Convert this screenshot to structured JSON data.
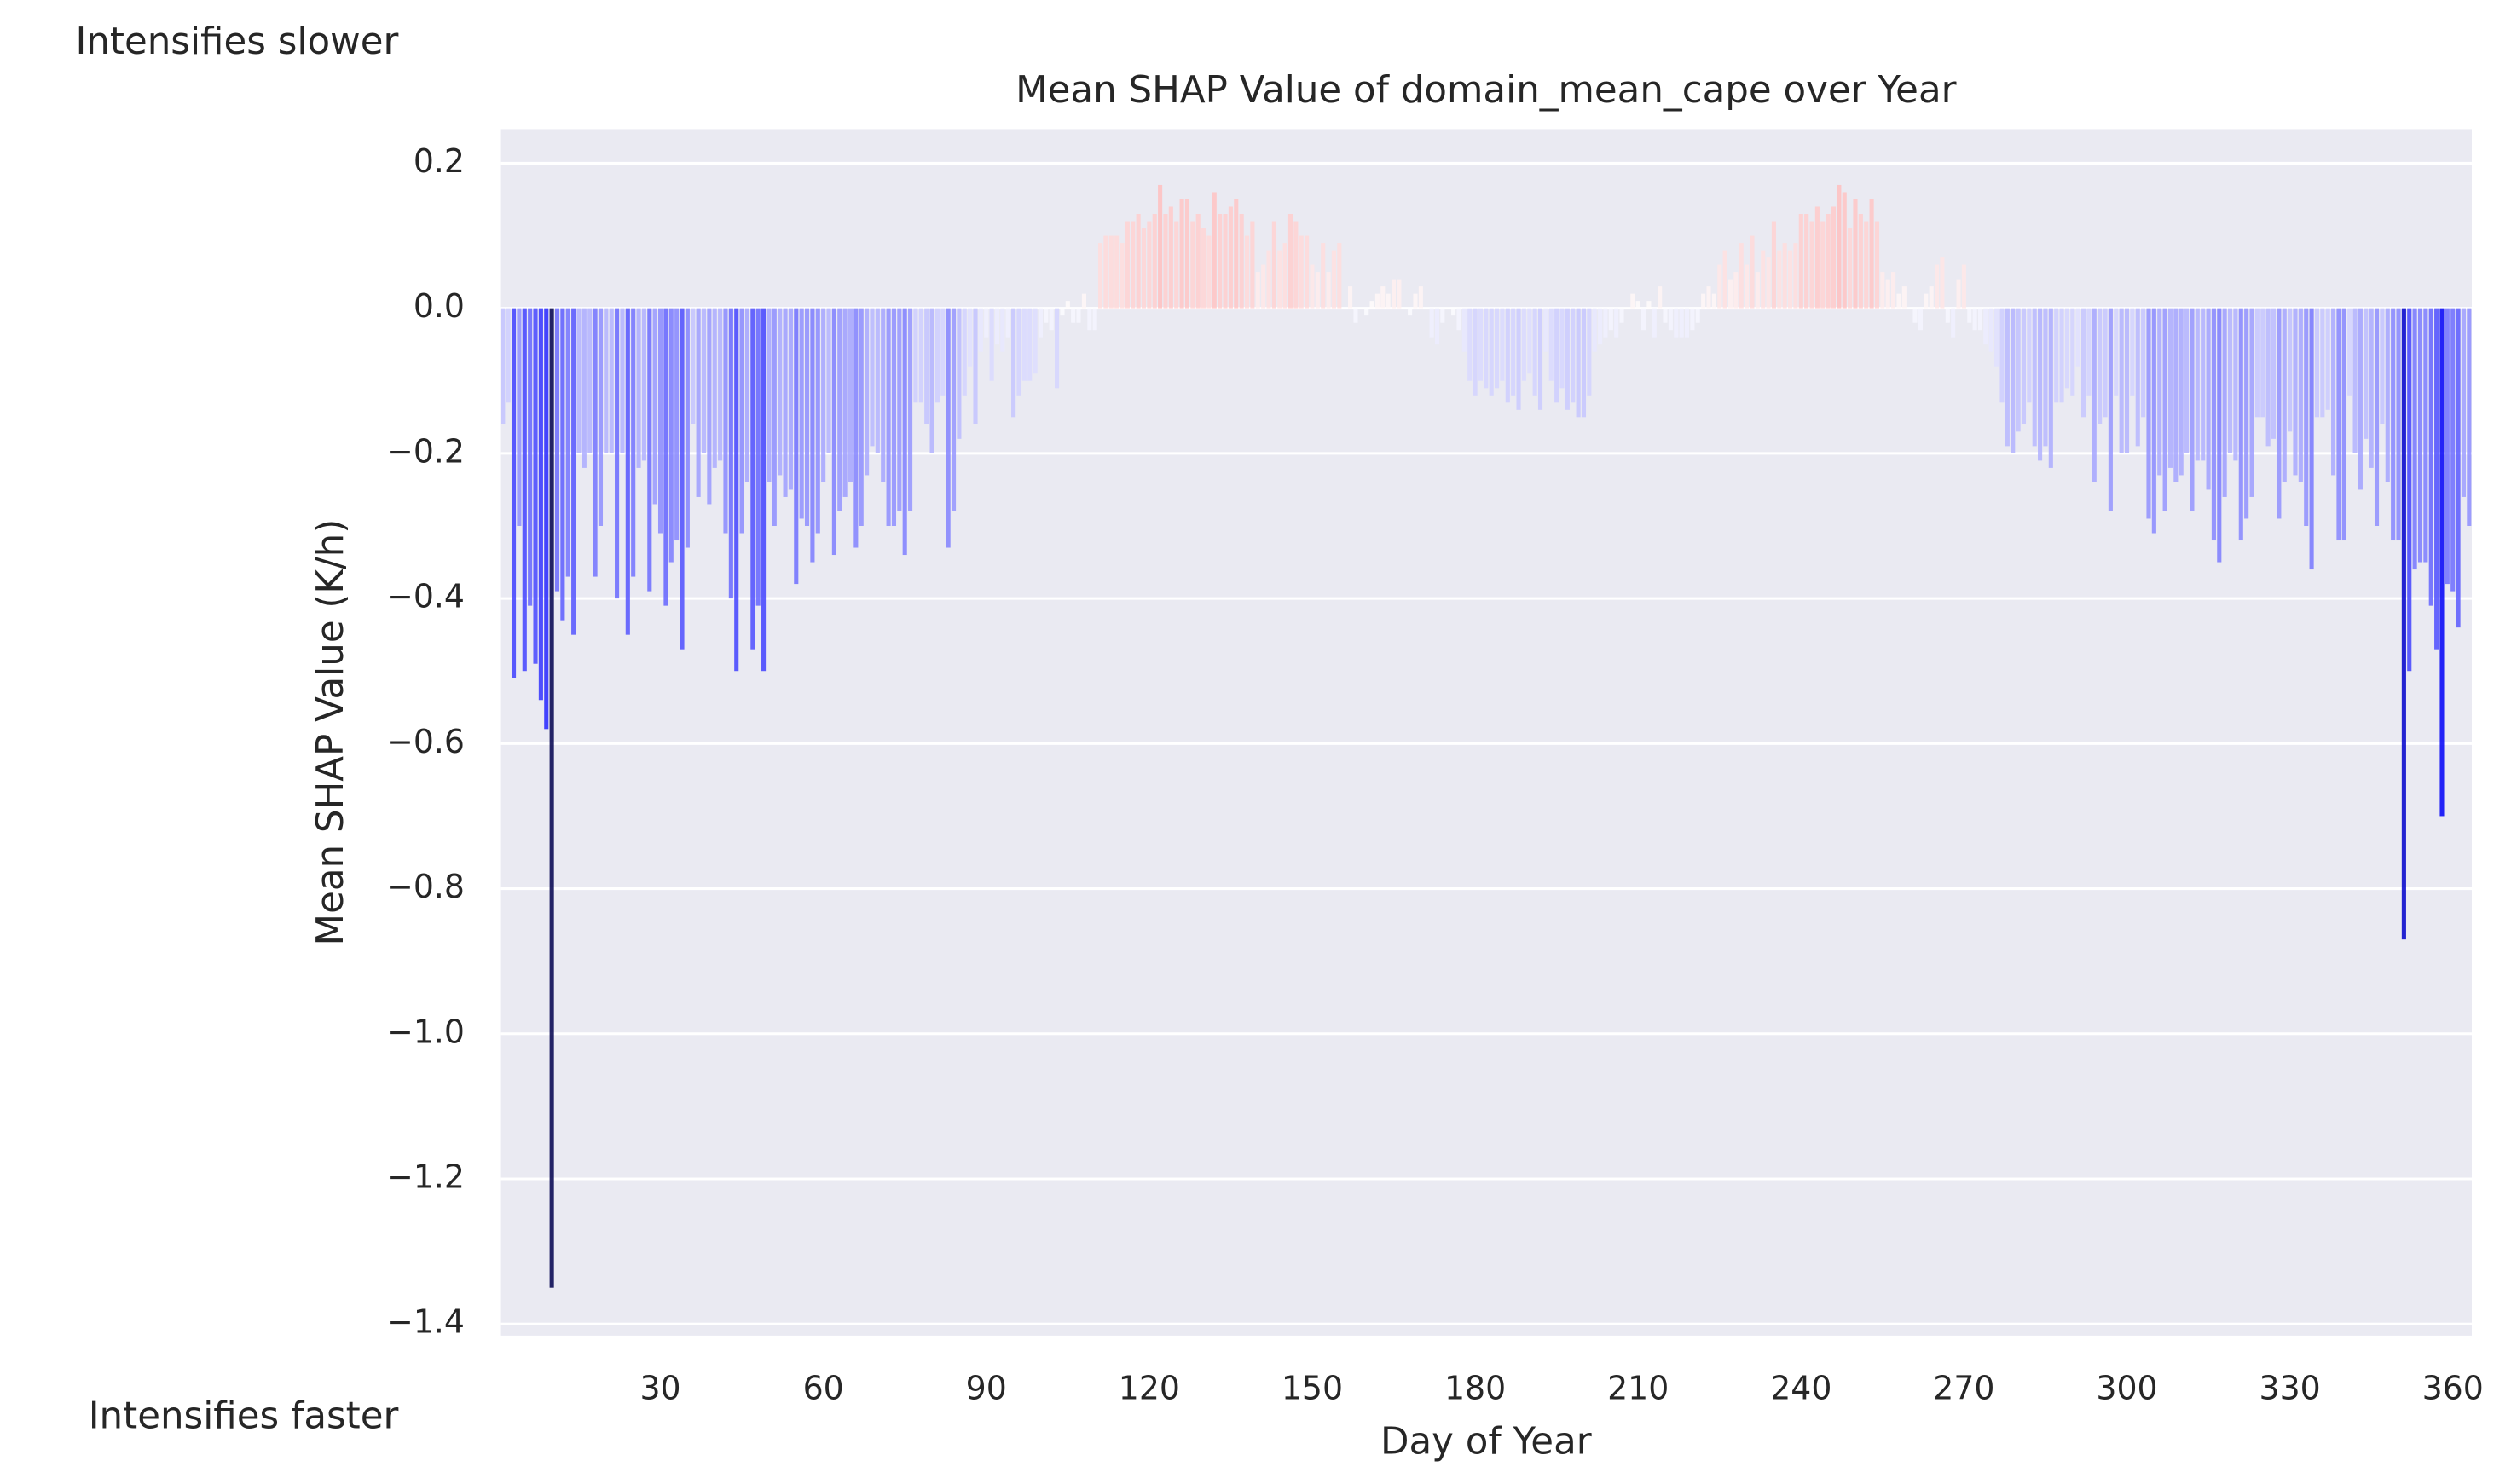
{
  "chart_data": {
    "type": "bar",
    "title": "Mean SHAP Value of domain_mean_cape over Year",
    "xlabel": "Day of Year",
    "ylabel": "Mean SHAP Value (K/h)",
    "annotations": [
      "Intensifies slower",
      "Intensifies faster"
    ],
    "colormap": "seismic",
    "grid": true,
    "background": "#eaeaf2",
    "xlim": [
      0.5,
      363.5
    ],
    "ylim": [
      -1.416,
      0.247
    ],
    "xticks": [
      30,
      60,
      90,
      120,
      150,
      180,
      210,
      240,
      270,
      300,
      330,
      360
    ],
    "yticks": [
      0.2,
      {
        "value": 0,
        "label": "0.0"
      },
      {
        "value": -0.2,
        "label": "−0.2"
      },
      {
        "value": -0.4,
        "label": "−0.4"
      },
      {
        "value": -0.6,
        "label": "−0.6"
      },
      {
        "value": -0.8,
        "label": "−0.8"
      },
      {
        "value": -1.0,
        "label": "−1.0"
      },
      {
        "value": -1.2,
        "label": "−1.2"
      },
      {
        "value": -1.4,
        "label": "−1.4"
      }
    ],
    "x": [
      1,
      2,
      3,
      4,
      5,
      6,
      7,
      8,
      9,
      10,
      11,
      12,
      13,
      14,
      15,
      16,
      17,
      18,
      19,
      20,
      21,
      22,
      23,
      24,
      25,
      26,
      27,
      28,
      29,
      30,
      31,
      32,
      33,
      34,
      35,
      36,
      37,
      38,
      39,
      40,
      41,
      42,
      43,
      44,
      45,
      46,
      47,
      48,
      49,
      50,
      51,
      52,
      53,
      54,
      55,
      56,
      57,
      58,
      59,
      60,
      61,
      62,
      63,
      64,
      65,
      66,
      67,
      68,
      69,
      70,
      71,
      72,
      73,
      74,
      75,
      76,
      77,
      78,
      79,
      80,
      81,
      82,
      83,
      84,
      85,
      86,
      87,
      88,
      89,
      90,
      91,
      92,
      93,
      94,
      95,
      96,
      97,
      98,
      99,
      100,
      101,
      102,
      103,
      104,
      105,
      106,
      107,
      108,
      109,
      110,
      111,
      112,
      113,
      114,
      115,
      116,
      117,
      118,
      119,
      120,
      121,
      122,
      123,
      124,
      125,
      126,
      127,
      128,
      129,
      130,
      131,
      132,
      133,
      134,
      135,
      136,
      137,
      138,
      139,
      140,
      141,
      142,
      143,
      144,
      145,
      146,
      147,
      148,
      149,
      150,
      151,
      152,
      153,
      154,
      155,
      156,
      157,
      158,
      159,
      160,
      161,
      162,
      163,
      164,
      165,
      166,
      167,
      168,
      169,
      170,
      171,
      172,
      173,
      174,
      175,
      176,
      177,
      178,
      179,
      180,
      181,
      182,
      183,
      184,
      185,
      186,
      187,
      188,
      189,
      190,
      191,
      192,
      193,
      194,
      195,
      196,
      197,
      198,
      199,
      200,
      201,
      202,
      203,
      204,
      205,
      206,
      207,
      208,
      209,
      210,
      211,
      212,
      213,
      214,
      215,
      216,
      217,
      218,
      219,
      220,
      221,
      222,
      223,
      224,
      225,
      226,
      227,
      228,
      229,
      230,
      231,
      232,
      233,
      234,
      235,
      236,
      237,
      238,
      239,
      240,
      241,
      242,
      243,
      244,
      245,
      246,
      247,
      248,
      249,
      250,
      251,
      252,
      253,
      254,
      255,
      256,
      257,
      258,
      259,
      260,
      261,
      262,
      263,
      264,
      265,
      266,
      267,
      268,
      269,
      270,
      271,
      272,
      273,
      274,
      275,
      276,
      277,
      278,
      279,
      280,
      281,
      282,
      283,
      284,
      285,
      286,
      287,
      288,
      289,
      290,
      291,
      292,
      293,
      294,
      295,
      296,
      297,
      298,
      299,
      300,
      301,
      302,
      303,
      304,
      305,
      306,
      307,
      308,
      309,
      310,
      311,
      312,
      313,
      314,
      315,
      316,
      317,
      318,
      319,
      320,
      321,
      322,
      323,
      324,
      325,
      326,
      327,
      328,
      329,
      330,
      331,
      332,
      333,
      334,
      335,
      336,
      337,
      338,
      339,
      340,
      341,
      342,
      343,
      344,
      345,
      346,
      347,
      348,
      349,
      350,
      351,
      352,
      353,
      354,
      355,
      356,
      357,
      358,
      359,
      360,
      361,
      362,
      363
    ],
    "values": [
      -0.16,
      -0.13,
      -0.51,
      -0.3,
      -0.5,
      -0.41,
      -0.49,
      -0.54,
      -0.58,
      -1.35,
      -0.39,
      -0.43,
      -0.37,
      -0.45,
      -0.2,
      -0.22,
      -0.2,
      -0.37,
      -0.3,
      -0.2,
      -0.2,
      -0.4,
      -0.2,
      -0.45,
      -0.37,
      -0.22,
      -0.21,
      -0.39,
      -0.27,
      -0.31,
      -0.41,
      -0.35,
      -0.32,
      -0.47,
      -0.33,
      -0.16,
      -0.26,
      -0.2,
      -0.27,
      -0.22,
      -0.21,
      -0.31,
      -0.4,
      -0.5,
      -0.31,
      -0.24,
      -0.47,
      -0.41,
      -0.5,
      -0.24,
      -0.3,
      -0.23,
      -0.26,
      -0.25,
      -0.38,
      -0.29,
      -0.3,
      -0.35,
      -0.31,
      -0.24,
      -0.2,
      -0.34,
      -0.28,
      -0.26,
      -0.24,
      -0.33,
      -0.3,
      -0.23,
      -0.19,
      -0.2,
      -0.24,
      -0.3,
      -0.3,
      -0.28,
      -0.34,
      -0.28,
      -0.13,
      -0.13,
      -0.16,
      -0.2,
      -0.13,
      -0.12,
      -0.33,
      -0.28,
      -0.18,
      -0.12,
      -0.08,
      -0.16,
      -0.06,
      -0.04,
      -0.1,
      -0.05,
      -0.06,
      -0.04,
      -0.15,
      -0.12,
      -0.1,
      -0.1,
      -0.09,
      -0.04,
      -0.02,
      -0.03,
      -0.11,
      -0.01,
      0.01,
      -0.02,
      -0.02,
      0.02,
      -0.03,
      -0.03,
      0.09,
      0.1,
      0.1,
      0.1,
      0.09,
      0.12,
      0.12,
      0.13,
      0.11,
      0.12,
      0.13,
      0.17,
      0.13,
      0.14,
      0.12,
      0.15,
      0.15,
      0.12,
      0.13,
      0.11,
      0.1,
      0.16,
      0.13,
      0.13,
      0.14,
      0.15,
      0.13,
      0.1,
      0.12,
      0.05,
      0.06,
      0.08,
      0.12,
      0.08,
      0.09,
      0.13,
      0.12,
      0.1,
      0.1,
      0.06,
      0.05,
      0.09,
      0.05,
      0.08,
      0.09,
      0,
      0.03,
      -0.02,
      0,
      -0.01,
      0.01,
      0.02,
      0.03,
      0.02,
      0.04,
      0.04,
      0,
      -0.01,
      0.02,
      0.03,
      0,
      -0.04,
      -0.05,
      -0.02,
      0,
      -0.01,
      -0.03,
      -0.06,
      -0.1,
      -0.12,
      -0.1,
      -0.11,
      -0.12,
      -0.11,
      -0.1,
      -0.13,
      -0.12,
      -0.14,
      -0.1,
      -0.09,
      -0.12,
      -0.14,
      -0.06,
      -0.1,
      -0.13,
      -0.11,
      -0.14,
      -0.13,
      -0.15,
      -0.15,
      -0.12,
      -0.06,
      -0.05,
      -0.04,
      -0.03,
      -0.04,
      -0.02,
      0,
      0.02,
      0.01,
      -0.03,
      0.01,
      -0.04,
      0.03,
      -0.02,
      -0.03,
      -0.04,
      -0.04,
      -0.04,
      -0.03,
      -0.02,
      0.02,
      0.03,
      0.02,
      0.06,
      0.08,
      0.04,
      0.05,
      0.09,
      0.06,
      0.1,
      0.05,
      0.08,
      0.07,
      0.12,
      0.08,
      0.09,
      0.08,
      0.09,
      0.13,
      0.13,
      0.12,
      0.14,
      0.12,
      0.13,
      0.14,
      0.17,
      0.16,
      0.11,
      0.15,
      0.13,
      0.12,
      0.15,
      0.12,
      0.05,
      0.04,
      0.05,
      0.02,
      0.03,
      0,
      -0.02,
      -0.03,
      0.02,
      0.03,
      0.06,
      0.07,
      -0.02,
      -0.04,
      0.04,
      0.06,
      -0.02,
      -0.03,
      -0.03,
      -0.05,
      -0.06,
      -0.08,
      -0.13,
      -0.19,
      -0.2,
      -0.17,
      -0.16,
      -0.13,
      -0.19,
      -0.21,
      -0.19,
      -0.22,
      -0.13,
      -0.13,
      -0.11,
      -0.12,
      -0.08,
      -0.15,
      -0.12,
      -0.24,
      -0.16,
      -0.15,
      -0.28,
      -0.12,
      -0.2,
      -0.2,
      -0.12,
      -0.19,
      -0.15,
      -0.29,
      -0.31,
      -0.23,
      -0.28,
      -0.22,
      -0.24,
      -0.23,
      -0.2,
      -0.28,
      -0.21,
      -0.21,
      -0.25,
      -0.32,
      -0.35,
      -0.26,
      -0.2,
      -0.21,
      -0.32,
      -0.29,
      -0.26,
      -0.15,
      -0.15,
      -0.19,
      -0.18,
      -0.29,
      -0.24,
      -0.17,
      -0.23,
      -0.24,
      -0.3,
      -0.36,
      -0.15,
      -0.15,
      -0.14,
      -0.23,
      -0.32,
      -0.32,
      -0.12,
      -0.2,
      -0.25,
      -0.18,
      -0.22,
      -0.3,
      -0.16,
      -0.24,
      -0.32,
      -0.32,
      -0.87,
      -0.5,
      -0.36,
      -0.35,
      -0.35,
      -0.41,
      -0.47,
      -0.7,
      -0.38,
      -0.39,
      -0.44,
      -0.26,
      -0.3
    ]
  }
}
